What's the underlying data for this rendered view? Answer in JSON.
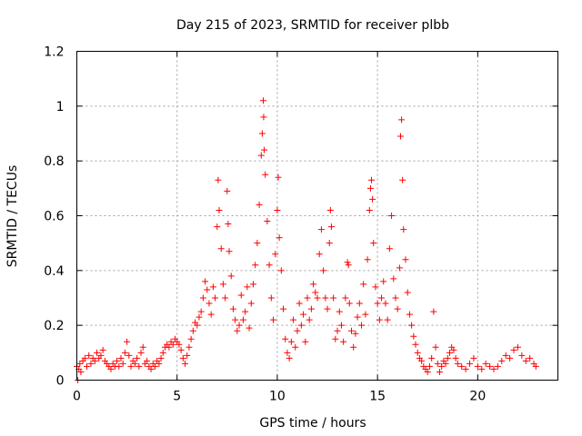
{
  "chart_data": {
    "type": "scatter",
    "title": "Day 215 of 2023, SRMTID for receiver plbb",
    "xlabel": "GPS time / hours",
    "ylabel": "SRMTID / TECUs",
    "xlim": [
      0,
      24
    ],
    "ylim": [
      0,
      1.2
    ],
    "xticks": [
      0,
      5,
      10,
      15,
      20
    ],
    "xtick_labels": [
      "0",
      "5",
      "10",
      "15",
      "20"
    ],
    "yticks": [
      0,
      0.2,
      0.4,
      0.6,
      0.8,
      1,
      1.2
    ],
    "ytick_labels": [
      "0",
      "0.2",
      "0.4",
      "0.6",
      "0.8",
      "1",
      "1.2"
    ],
    "grid": true,
    "marker": "+",
    "marker_color": "#ff0000",
    "series": [
      {
        "name": "SRMTID",
        "points": [
          [
            0.0,
            0.05
          ],
          [
            0.05,
            0.0
          ],
          [
            0.1,
            0.04
          ],
          [
            0.15,
            0.06
          ],
          [
            0.2,
            0.03
          ],
          [
            0.3,
            0.07
          ],
          [
            0.4,
            0.08
          ],
          [
            0.5,
            0.05
          ],
          [
            0.6,
            0.09
          ],
          [
            0.7,
            0.06
          ],
          [
            0.8,
            0.08
          ],
          [
            0.9,
            0.07
          ],
          [
            1.0,
            0.1
          ],
          [
            1.1,
            0.08
          ],
          [
            1.2,
            0.09
          ],
          [
            1.3,
            0.11
          ],
          [
            1.4,
            0.07
          ],
          [
            1.5,
            0.06
          ],
          [
            1.6,
            0.05
          ],
          [
            1.7,
            0.04
          ],
          [
            1.8,
            0.06
          ],
          [
            1.9,
            0.05
          ],
          [
            2.0,
            0.07
          ],
          [
            2.1,
            0.05
          ],
          [
            2.2,
            0.08
          ],
          [
            2.3,
            0.06
          ],
          [
            2.4,
            0.1
          ],
          [
            2.5,
            0.14
          ],
          [
            2.6,
            0.09
          ],
          [
            2.7,
            0.05
          ],
          [
            2.8,
            0.07
          ],
          [
            2.9,
            0.06
          ],
          [
            3.0,
            0.08
          ],
          [
            3.1,
            0.05
          ],
          [
            3.2,
            0.1
          ],
          [
            3.3,
            0.12
          ],
          [
            3.4,
            0.06
          ],
          [
            3.5,
            0.07
          ],
          [
            3.6,
            0.05
          ],
          [
            3.7,
            0.04
          ],
          [
            3.8,
            0.06
          ],
          [
            3.9,
            0.05
          ],
          [
            4.0,
            0.07
          ],
          [
            4.1,
            0.06
          ],
          [
            4.2,
            0.08
          ],
          [
            4.3,
            0.1
          ],
          [
            4.4,
            0.12
          ],
          [
            4.5,
            0.13
          ],
          [
            4.6,
            0.12
          ],
          [
            4.7,
            0.14
          ],
          [
            4.8,
            0.13
          ],
          [
            4.9,
            0.15
          ],
          [
            5.0,
            0.14
          ],
          [
            5.1,
            0.13
          ],
          [
            5.2,
            0.11
          ],
          [
            5.3,
            0.08
          ],
          [
            5.4,
            0.06
          ],
          [
            5.5,
            0.09
          ],
          [
            5.6,
            0.12
          ],
          [
            5.7,
            0.15
          ],
          [
            5.8,
            0.18
          ],
          [
            5.9,
            0.21
          ],
          [
            6.0,
            0.2
          ],
          [
            6.1,
            0.23
          ],
          [
            6.2,
            0.25
          ],
          [
            6.3,
            0.3
          ],
          [
            6.4,
            0.36
          ],
          [
            6.5,
            0.33
          ],
          [
            6.6,
            0.28
          ],
          [
            6.7,
            0.24
          ],
          [
            6.8,
            0.34
          ],
          [
            6.9,
            0.3
          ],
          [
            7.0,
            0.56
          ],
          [
            7.05,
            0.73
          ],
          [
            7.1,
            0.62
          ],
          [
            7.2,
            0.48
          ],
          [
            7.3,
            0.35
          ],
          [
            7.4,
            0.3
          ],
          [
            7.5,
            0.69
          ],
          [
            7.55,
            0.57
          ],
          [
            7.6,
            0.47
          ],
          [
            7.7,
            0.38
          ],
          [
            7.8,
            0.26
          ],
          [
            7.9,
            0.22
          ],
          [
            8.0,
            0.18
          ],
          [
            8.1,
            0.2
          ],
          [
            8.2,
            0.31
          ],
          [
            8.3,
            0.22
          ],
          [
            8.4,
            0.25
          ],
          [
            8.5,
            0.34
          ],
          [
            8.6,
            0.19
          ],
          [
            8.7,
            0.28
          ],
          [
            8.8,
            0.35
          ],
          [
            8.9,
            0.42
          ],
          [
            9.0,
            0.5
          ],
          [
            9.1,
            0.64
          ],
          [
            9.2,
            0.82
          ],
          [
            9.25,
            0.9
          ],
          [
            9.3,
            1.02
          ],
          [
            9.32,
            0.96
          ],
          [
            9.35,
            0.84
          ],
          [
            9.4,
            0.75
          ],
          [
            9.5,
            0.58
          ],
          [
            9.6,
            0.42
          ],
          [
            9.7,
            0.3
          ],
          [
            9.8,
            0.22
          ],
          [
            9.9,
            0.46
          ],
          [
            10.0,
            0.62
          ],
          [
            10.05,
            0.74
          ],
          [
            10.1,
            0.52
          ],
          [
            10.2,
            0.4
          ],
          [
            10.3,
            0.26
          ],
          [
            10.4,
            0.15
          ],
          [
            10.5,
            0.1
          ],
          [
            10.6,
            0.08
          ],
          [
            10.7,
            0.14
          ],
          [
            10.8,
            0.22
          ],
          [
            10.9,
            0.12
          ],
          [
            11.0,
            0.18
          ],
          [
            11.1,
            0.28
          ],
          [
            11.2,
            0.2
          ],
          [
            11.3,
            0.24
          ],
          [
            11.4,
            0.14
          ],
          [
            11.5,
            0.3
          ],
          [
            11.6,
            0.22
          ],
          [
            11.7,
            0.26
          ],
          [
            11.8,
            0.35
          ],
          [
            11.9,
            0.32
          ],
          [
            12.0,
            0.3
          ],
          [
            12.1,
            0.46
          ],
          [
            12.2,
            0.55
          ],
          [
            12.3,
            0.4
          ],
          [
            12.4,
            0.3
          ],
          [
            12.5,
            0.26
          ],
          [
            12.6,
            0.5
          ],
          [
            12.65,
            0.62
          ],
          [
            12.7,
            0.56
          ],
          [
            12.8,
            0.3
          ],
          [
            12.9,
            0.15
          ],
          [
            13.0,
            0.18
          ],
          [
            13.1,
            0.25
          ],
          [
            13.2,
            0.2
          ],
          [
            13.3,
            0.14
          ],
          [
            13.4,
            0.3
          ],
          [
            13.5,
            0.43
          ],
          [
            13.55,
            0.42
          ],
          [
            13.6,
            0.28
          ],
          [
            13.7,
            0.18
          ],
          [
            13.8,
            0.12
          ],
          [
            13.9,
            0.17
          ],
          [
            14.0,
            0.23
          ],
          [
            14.1,
            0.28
          ],
          [
            14.2,
            0.2
          ],
          [
            14.3,
            0.35
          ],
          [
            14.4,
            0.24
          ],
          [
            14.5,
            0.44
          ],
          [
            14.6,
            0.62
          ],
          [
            14.65,
            0.7
          ],
          [
            14.7,
            0.73
          ],
          [
            14.75,
            0.66
          ],
          [
            14.8,
            0.5
          ],
          [
            14.9,
            0.34
          ],
          [
            15.0,
            0.28
          ],
          [
            15.1,
            0.22
          ],
          [
            15.2,
            0.3
          ],
          [
            15.3,
            0.36
          ],
          [
            15.4,
            0.28
          ],
          [
            15.5,
            0.22
          ],
          [
            15.6,
            0.48
          ],
          [
            15.7,
            0.6
          ],
          [
            15.8,
            0.37
          ],
          [
            15.9,
            0.3
          ],
          [
            16.0,
            0.26
          ],
          [
            16.1,
            0.41
          ],
          [
            16.15,
            0.89
          ],
          [
            16.2,
            0.95
          ],
          [
            16.25,
            0.73
          ],
          [
            16.3,
            0.55
          ],
          [
            16.4,
            0.44
          ],
          [
            16.5,
            0.32
          ],
          [
            16.6,
            0.24
          ],
          [
            16.7,
            0.2
          ],
          [
            16.8,
            0.16
          ],
          [
            16.9,
            0.13
          ],
          [
            17.0,
            0.1
          ],
          [
            17.1,
            0.08
          ],
          [
            17.2,
            0.07
          ],
          [
            17.3,
            0.05
          ],
          [
            17.4,
            0.04
          ],
          [
            17.5,
            0.03
          ],
          [
            17.6,
            0.05
          ],
          [
            17.7,
            0.08
          ],
          [
            17.8,
            0.25
          ],
          [
            17.9,
            0.12
          ],
          [
            18.0,
            0.06
          ],
          [
            18.1,
            0.03
          ],
          [
            18.2,
            0.05
          ],
          [
            18.3,
            0.07
          ],
          [
            18.4,
            0.06
          ],
          [
            18.5,
            0.08
          ],
          [
            18.6,
            0.1
          ],
          [
            18.7,
            0.12
          ],
          [
            18.8,
            0.11
          ],
          [
            18.9,
            0.08
          ],
          [
            19.0,
            0.06
          ],
          [
            19.2,
            0.05
          ],
          [
            19.4,
            0.04
          ],
          [
            19.6,
            0.06
          ],
          [
            19.8,
            0.08
          ],
          [
            20.0,
            0.05
          ],
          [
            20.2,
            0.04
          ],
          [
            20.4,
            0.06
          ],
          [
            20.6,
            0.05
          ],
          [
            20.8,
            0.04
          ],
          [
            21.0,
            0.05
          ],
          [
            21.2,
            0.07
          ],
          [
            21.4,
            0.09
          ],
          [
            21.6,
            0.08
          ],
          [
            21.8,
            0.11
          ],
          [
            22.0,
            0.12
          ],
          [
            22.2,
            0.09
          ],
          [
            22.4,
            0.07
          ],
          [
            22.6,
            0.08
          ],
          [
            22.8,
            0.06
          ],
          [
            22.9,
            0.05
          ]
        ]
      }
    ]
  }
}
